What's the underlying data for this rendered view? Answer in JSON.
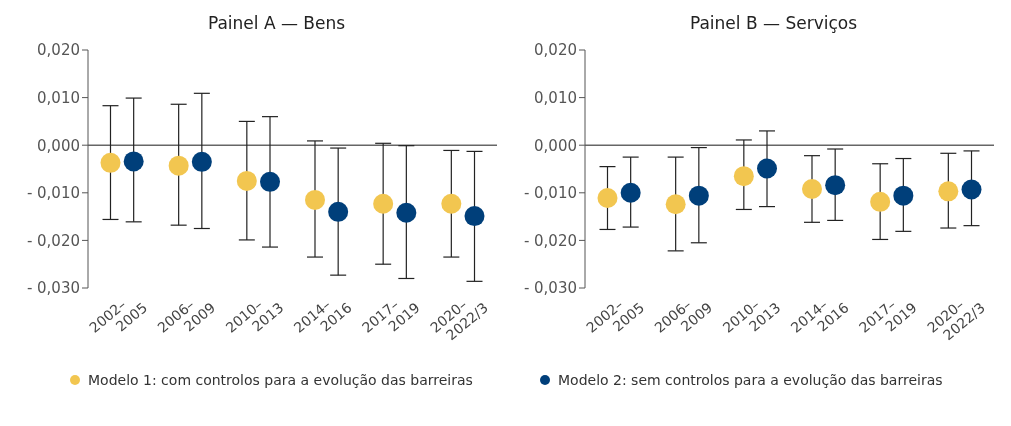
{
  "chart_data": [
    {
      "type": "scatter",
      "title": "Painel A — Bens",
      "categories": [
        "2002–2005",
        "2006–2009",
        "2010–2013",
        "2014–2016",
        "2017–2019",
        "2020–2022/3"
      ],
      "series": [
        {
          "name": "Modelo 1: com controlos para a evolução das barreiras",
          "color": "#f2c650",
          "values": [
            -0.0037,
            -0.0043,
            -0.0075,
            -0.0115,
            -0.0123,
            -0.0123
          ],
          "errors": [
            [
              -0.0156,
              0.0083
            ],
            [
              -0.0168,
              0.0086
            ],
            [
              -0.0199,
              0.005
            ],
            [
              -0.0235,
              0.0009
            ],
            [
              -0.025,
              0.0004
            ],
            [
              -0.0235,
              -0.0011
            ]
          ]
        },
        {
          "name": "Modelo 2: sem controlos para a evolução das barreiras",
          "color": "#003f7a",
          "values": [
            -0.0034,
            -0.0035,
            -0.0077,
            -0.014,
            -0.0142,
            -0.0149
          ],
          "errors": [
            [
              -0.0161,
              0.0099
            ],
            [
              -0.0175,
              0.0109
            ],
            [
              -0.0214,
              0.006
            ],
            [
              -0.0273,
              -0.0006
            ],
            [
              -0.028,
              -0.0001
            ],
            [
              -0.0286,
              -0.0013
            ]
          ]
        }
      ],
      "ylim": [
        -0.03,
        0.02
      ],
      "yticks": [
        {
          "value": -0.03,
          "label": "- 0,030"
        },
        {
          "value": -0.02,
          "label": "- 0,020"
        },
        {
          "value": -0.01,
          "label": "- 0,010"
        },
        {
          "value": 0,
          "label": "0,000"
        },
        {
          "value": 0.01,
          "label": "0,010"
        },
        {
          "value": 0.02,
          "label": "0,020"
        }
      ],
      "ref_lines": [
        {
          "axis": "y",
          "value": 0,
          "color": "#666666"
        }
      ],
      "marker": "circle",
      "grid": false,
      "legend": "bottom"
    },
    {
      "type": "scatter",
      "title": "Painel B — Serviços",
      "categories": [
        "2002–2005",
        "2006–2009",
        "2010–2013",
        "2014–2016",
        "2017–2019",
        "2020–2022/3"
      ],
      "series": [
        {
          "color": "#f2c650",
          "values": [
            -0.0111,
            -0.0124,
            -0.0065,
            -0.0092,
            -0.0119,
            -0.0097
          ],
          "errors": [
            [
              -0.0177,
              -0.0045
            ],
            [
              -0.0222,
              -0.0025
            ],
            [
              -0.0135,
              0.0011
            ],
            [
              -0.0162,
              -0.0022
            ],
            [
              -0.0198,
              -0.0039
            ],
            [
              -0.0174,
              -0.0017
            ]
          ]
        },
        {
          "color": "#003f7a",
          "values": [
            -0.01,
            -0.0106,
            -0.0049,
            -0.0084,
            -0.0106,
            -0.0093
          ],
          "errors": [
            [
              -0.0172,
              -0.0025
            ],
            [
              -0.0205,
              -0.0005
            ],
            [
              -0.0129,
              0.003
            ],
            [
              -0.0158,
              -0.0008
            ],
            [
              -0.0181,
              -0.0028
            ],
            [
              -0.0169,
              -0.0012
            ]
          ]
        }
      ],
      "ylim": [
        -0.03,
        0.02
      ],
      "yticks": [
        {
          "value": -0.03,
          "label": "- 0,030"
        },
        {
          "value": -0.02,
          "label": "- 0,020"
        },
        {
          "value": -0.01,
          "label": "- 0,010"
        },
        {
          "value": 0,
          "label": "0,000"
        },
        {
          "value": 0.01,
          "label": "0,010"
        },
        {
          "value": 0.02,
          "label": "0,020"
        }
      ],
      "ref_lines": [
        {
          "axis": "y",
          "value": 0,
          "color": "#666666"
        }
      ],
      "marker": "circle",
      "grid": false
    }
  ]
}
